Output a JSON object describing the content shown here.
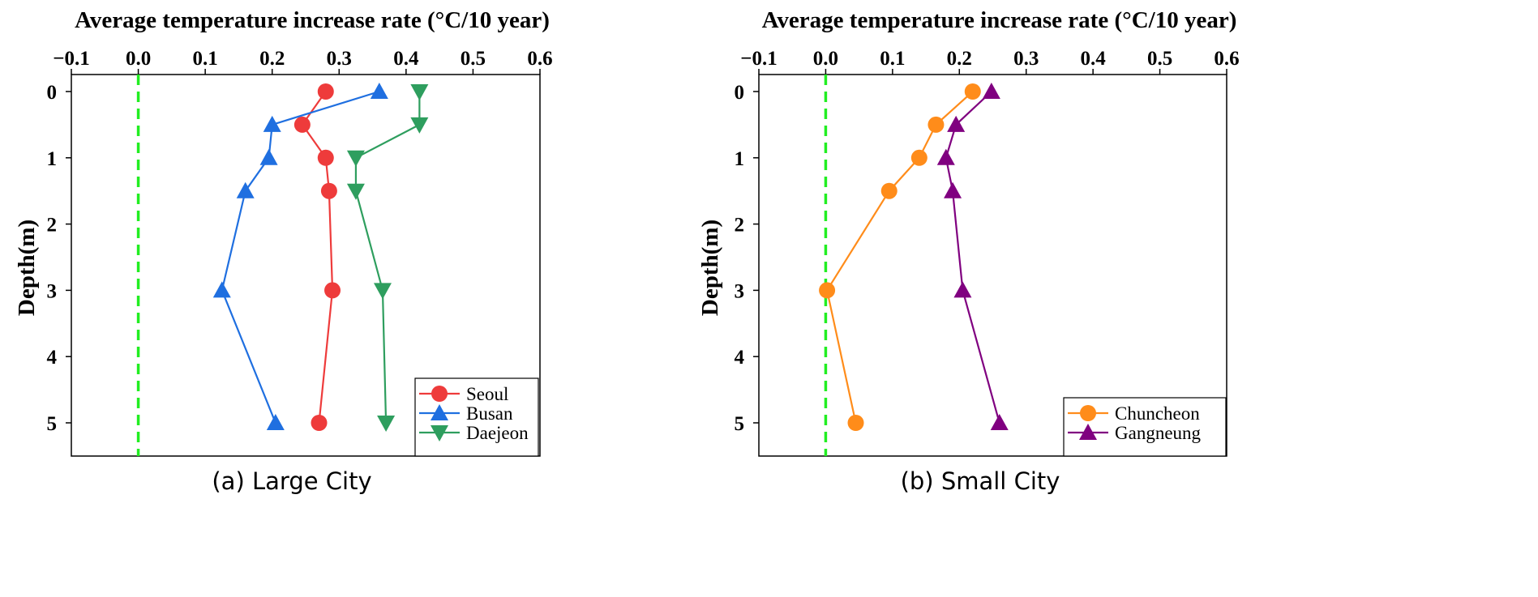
{
  "chart_data": [
    {
      "type": "line",
      "panel_id": "a",
      "title": "Average temperature increase rate (°C/10 year)",
      "caption": "(a)  Large  City",
      "xlabel": "Average temperature increase rate (°C/10 year)",
      "ylabel": "Depth(m)",
      "xlim": [
        -0.1,
        0.6
      ],
      "ylim": [
        0,
        5.5
      ],
      "y_inverted": true,
      "xticks": [
        -0.1,
        0.0,
        0.1,
        0.2,
        0.3,
        0.4,
        0.5,
        0.6
      ],
      "xtick_labels": [
        "−0.1",
        "0.0",
        "0.1",
        "0.2",
        "0.3",
        "0.4",
        "0.5",
        "0.6"
      ],
      "yticks": [
        0,
        1,
        2,
        3,
        4,
        5
      ],
      "ytick_labels": [
        "0",
        "1",
        "2",
        "3",
        "4",
        "5"
      ],
      "reference_line": {
        "x": 0.0,
        "style": "dashed",
        "color": "#22ee22"
      },
      "legend_position": "bottom-right",
      "series": [
        {
          "name": "Seoul",
          "marker": "circle",
          "color": "#ee3b3b",
          "points": [
            [
              0.28,
              0
            ],
            [
              0.245,
              0.5
            ],
            [
              0.28,
              1
            ],
            [
              0.285,
              1.5
            ],
            [
              0.29,
              3
            ],
            [
              0.27,
              5
            ]
          ]
        },
        {
          "name": "Busan",
          "marker": "triangle-up",
          "color": "#1f6fe0",
          "points": [
            [
              0.36,
              0
            ],
            [
              0.2,
              0.5
            ],
            [
              0.195,
              1
            ],
            [
              0.16,
              1.5
            ],
            [
              0.125,
              3
            ],
            [
              0.205,
              5
            ]
          ]
        },
        {
          "name": "Daejeon",
          "marker": "triangle-down",
          "color": "#2e9e5e",
          "points": [
            [
              0.42,
              0
            ],
            [
              0.42,
              0.5
            ],
            [
              0.325,
              1
            ],
            [
              0.325,
              1.5
            ],
            [
              0.365,
              3
            ],
            [
              0.37,
              5
            ]
          ]
        }
      ]
    },
    {
      "type": "line",
      "panel_id": "b",
      "title": "Average temperature increase rate (°C/10 year)",
      "caption": "(b)  Small  City",
      "xlabel": "Average temperature increase rate (°C/10 year)",
      "ylabel": "Depth(m)",
      "xlim": [
        -0.1,
        0.6
      ],
      "ylim": [
        0,
        5.5
      ],
      "y_inverted": true,
      "xticks": [
        -0.1,
        0.0,
        0.1,
        0.2,
        0.3,
        0.4,
        0.5,
        0.6
      ],
      "xtick_labels": [
        "−0.1",
        "0.0",
        "0.1",
        "0.2",
        "0.3",
        "0.4",
        "0.5",
        "0.6"
      ],
      "yticks": [
        0,
        1,
        2,
        3,
        4,
        5
      ],
      "ytick_labels": [
        "0",
        "1",
        "2",
        "3",
        "4",
        "5"
      ],
      "reference_line": {
        "x": 0.0,
        "style": "dashed",
        "color": "#22ee22"
      },
      "legend_position": "bottom-right",
      "series": [
        {
          "name": "Chuncheon",
          "marker": "circle",
          "color": "#ff8c1a",
          "points": [
            [
              0.22,
              0
            ],
            [
              0.165,
              0.5
            ],
            [
              0.14,
              1
            ],
            [
              0.095,
              1.5
            ],
            [
              0.002,
              3
            ],
            [
              0.045,
              5
            ]
          ]
        },
        {
          "name": "Gangneung",
          "marker": "triangle-up",
          "color": "#800080",
          "points": [
            [
              0.248,
              0
            ],
            [
              0.195,
              0.5
            ],
            [
              0.18,
              1
            ],
            [
              0.19,
              1.5
            ],
            [
              0.205,
              3
            ],
            [
              0.26,
              5
            ]
          ]
        }
      ]
    }
  ]
}
